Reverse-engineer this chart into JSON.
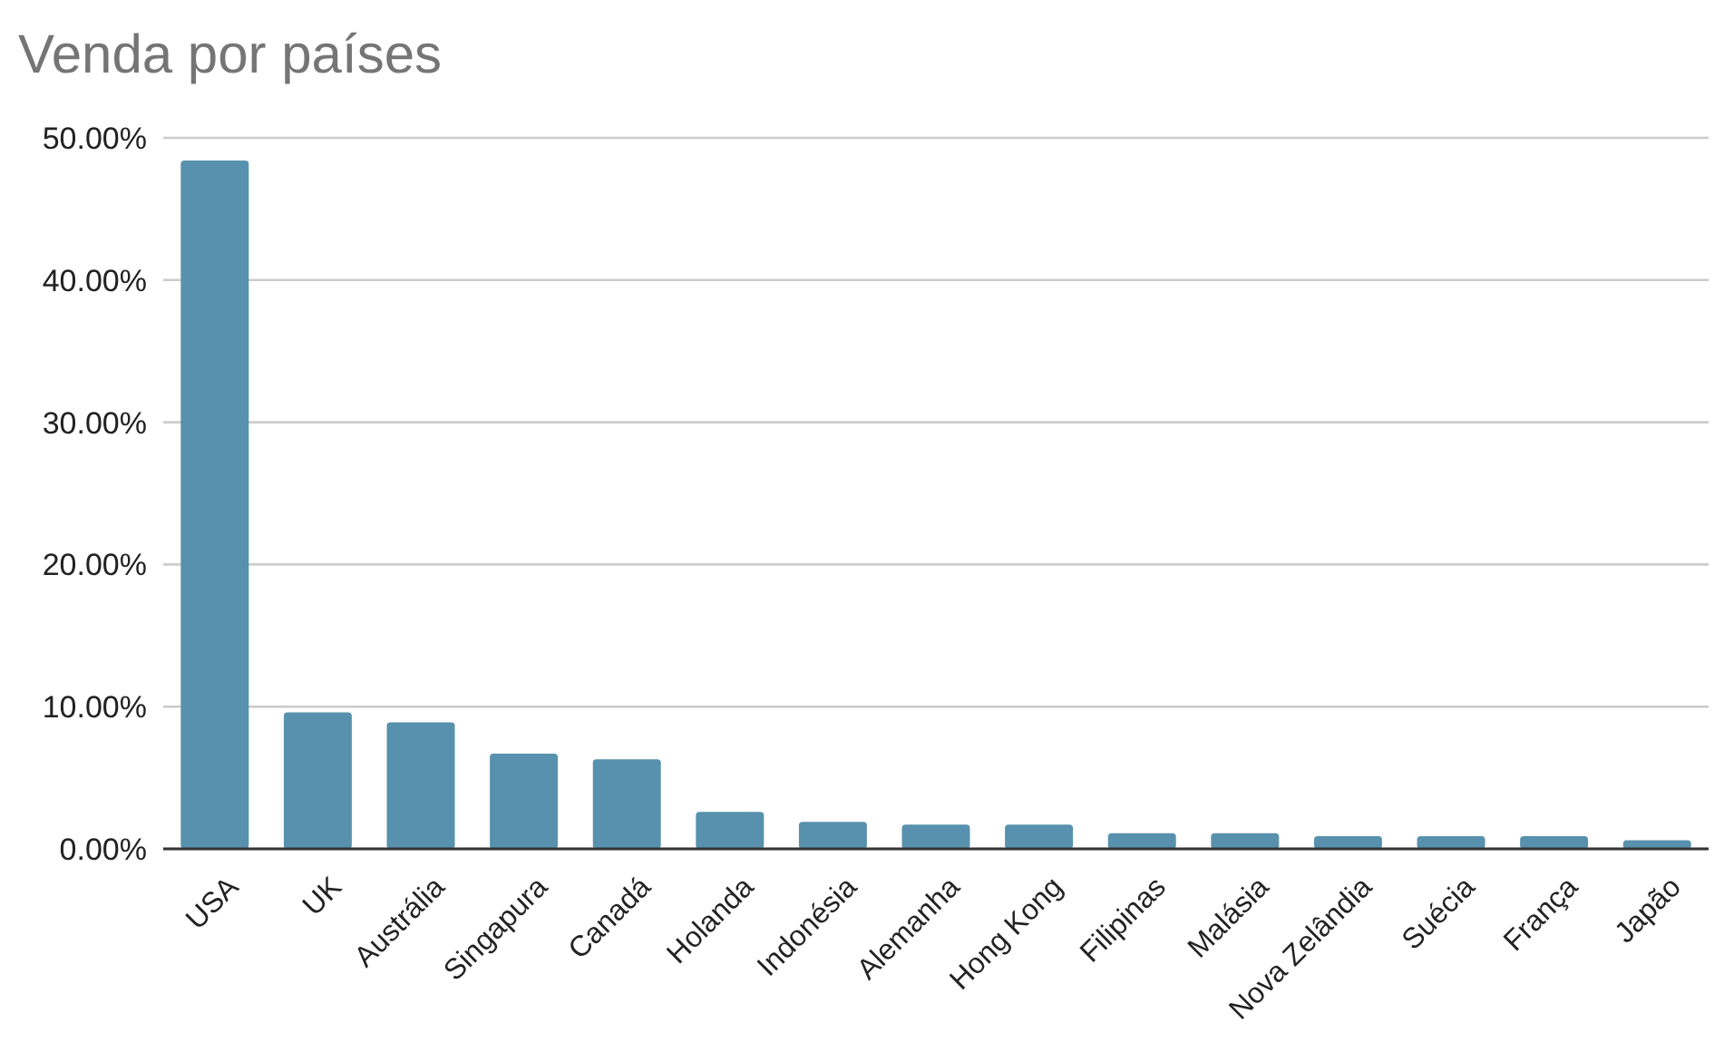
{
  "chart_data": {
    "type": "bar",
    "title": "Venda por países",
    "categories": [
      "USA",
      "UK",
      "Austrália",
      "Singapura",
      "Canadá",
      "Holanda",
      "Indonésia",
      "Alemanha",
      "Hong Kong",
      "Filipinas",
      "Malásia",
      "Nova Zelândia",
      "Suécia",
      "França",
      "Japão"
    ],
    "values": [
      48.4,
      9.6,
      8.9,
      6.7,
      6.3,
      2.6,
      1.9,
      1.7,
      1.7,
      1.1,
      1.1,
      0.9,
      0.9,
      0.9,
      0.6
    ],
    "color": "#5891ad",
    "ylim": [
      0,
      50
    ],
    "yticks": [
      {
        "value": 0,
        "label": "0.00%"
      },
      {
        "value": 10,
        "label": "10.00%"
      },
      {
        "value": 20,
        "label": "20.00%"
      },
      {
        "value": 30,
        "label": "30.00%"
      },
      {
        "value": 40,
        "label": "40.00%"
      },
      {
        "value": 50,
        "label": "50.00%"
      }
    ],
    "grid": "y"
  }
}
